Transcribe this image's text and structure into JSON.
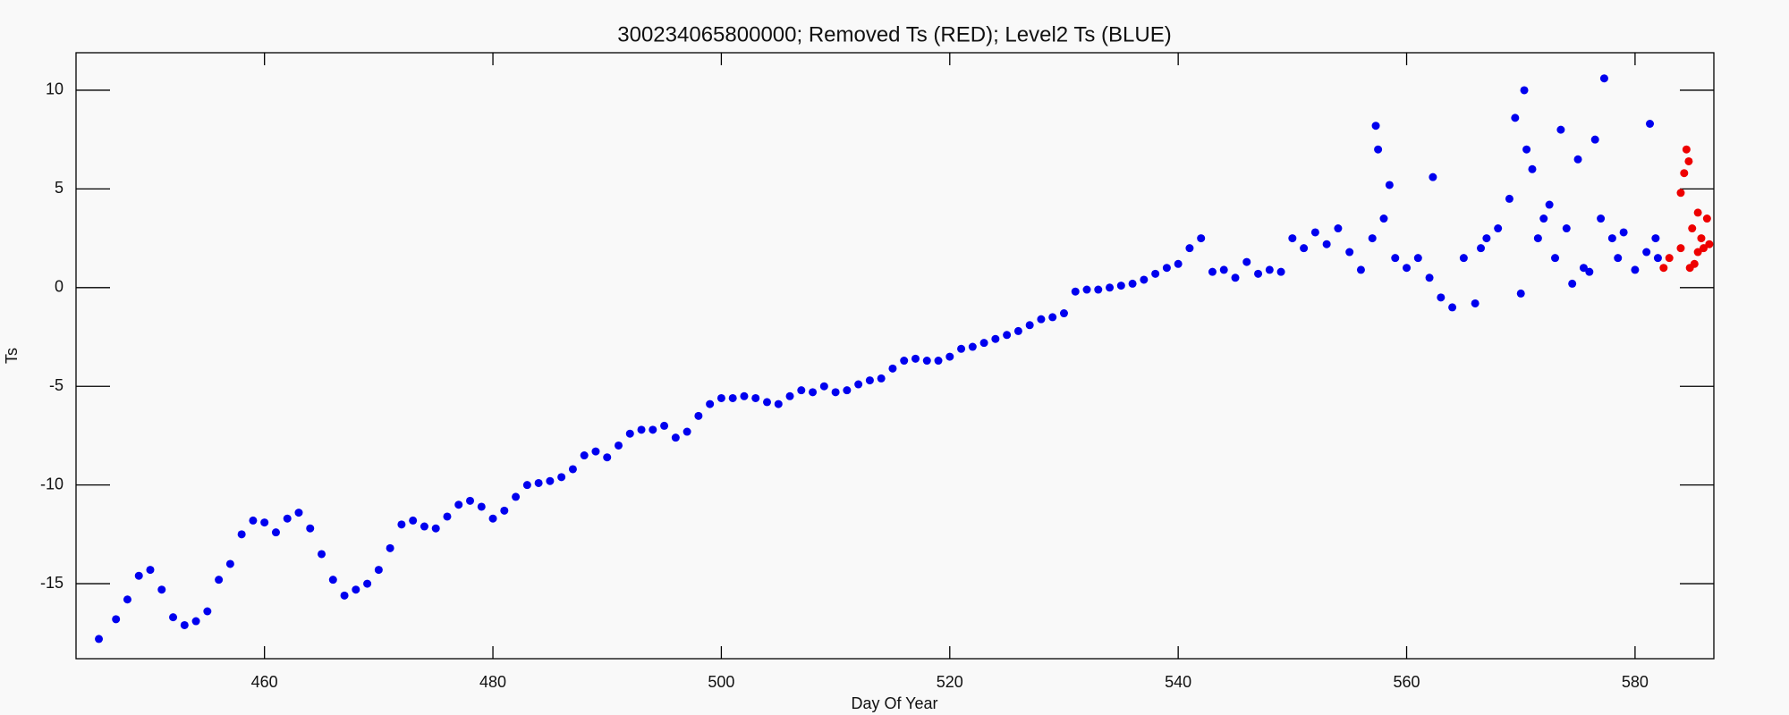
{
  "chart_data": {
    "type": "scatter",
    "title": "300234065800000; Removed Ts (RED); Level2 Ts (BLUE)",
    "xlabel": "Day Of Year",
    "ylabel": "Ts",
    "xlim": [
      443.5,
      586.9
    ],
    "ylim": [
      -18.8,
      11.9
    ],
    "xticks": [
      460,
      480,
      500,
      520,
      540,
      560,
      580
    ],
    "yticks": [
      -15,
      -10,
      -5,
      0,
      5,
      10
    ],
    "series": [
      {
        "color": "#0000ee",
        "x": [
          445.5,
          447,
          448,
          449,
          450,
          451,
          452,
          453,
          454,
          455,
          456,
          457,
          458,
          459,
          460,
          461,
          462,
          463,
          464,
          465,
          466,
          467,
          468,
          469,
          470,
          471,
          472,
          473,
          474,
          475,
          476,
          477,
          478,
          479,
          480,
          481,
          482,
          483,
          484,
          485,
          486,
          487,
          488,
          489,
          490,
          491,
          492,
          493,
          494,
          495,
          496,
          497,
          498,
          499,
          500,
          501,
          502,
          503,
          504,
          505,
          506,
          507,
          508,
          509,
          510,
          511,
          512,
          513,
          514,
          515,
          516,
          517,
          518,
          519,
          520,
          521,
          522,
          523,
          524,
          525,
          526,
          527,
          528,
          529,
          530,
          531,
          532,
          533,
          534,
          535,
          536,
          537,
          538,
          539,
          540,
          541,
          542,
          543,
          544,
          545,
          546,
          547,
          548,
          549,
          550,
          551,
          552,
          553,
          554,
          555,
          556,
          557,
          557.3,
          557.5,
          558,
          558.5,
          559,
          560,
          561,
          562,
          562.3,
          563,
          564,
          565,
          566,
          566.5,
          567,
          568,
          569,
          569.5,
          570,
          570.3,
          570.5,
          571,
          571.5,
          572,
          572.5,
          573,
          573.5,
          574,
          574.5,
          575,
          575.5,
          576,
          576.5,
          577,
          577.3,
          578,
          578.5,
          579,
          580,
          581,
          581.3,
          581.8,
          582
        ],
        "values": [
          -17.8,
          -16.8,
          -15.8,
          -14.6,
          -14.3,
          -15.3,
          -16.7,
          -17.1,
          -16.9,
          -16.4,
          -14.8,
          -14.0,
          -12.5,
          -11.8,
          -11.9,
          -12.4,
          -11.7,
          -11.4,
          -12.2,
          -13.5,
          -14.8,
          -15.6,
          -15.3,
          -15.0,
          -14.3,
          -13.2,
          -12.0,
          -11.8,
          -12.1,
          -12.2,
          -11.6,
          -11.0,
          -10.8,
          -11.1,
          -11.7,
          -11.3,
          -10.6,
          -10.0,
          -9.9,
          -9.8,
          -9.6,
          -9.2,
          -8.5,
          -8.3,
          -8.6,
          -8.0,
          -7.4,
          -7.2,
          -7.2,
          -7.0,
          -7.6,
          -7.3,
          -6.5,
          -5.9,
          -5.6,
          -5.6,
          -5.5,
          -5.6,
          -5.8,
          -5.9,
          -5.5,
          -5.2,
          -5.3,
          -5.0,
          -5.3,
          -5.2,
          -4.9,
          -4.7,
          -4.6,
          -4.1,
          -3.7,
          -3.6,
          -3.7,
          -3.7,
          -3.5,
          -3.1,
          -3.0,
          -2.8,
          -2.6,
          -2.4,
          -2.2,
          -1.9,
          -1.6,
          -1.5,
          -1.3,
          -0.2,
          -0.1,
          -0.1,
          0.0,
          0.1,
          0.2,
          0.4,
          0.7,
          1.0,
          1.2,
          2.0,
          2.5,
          0.8,
          0.9,
          0.5,
          1.3,
          0.7,
          0.9,
          0.8,
          2.5,
          2.0,
          2.8,
          2.2,
          3.0,
          1.8,
          0.9,
          2.5,
          8.2,
          7.0,
          3.5,
          5.2,
          1.5,
          1.0,
          1.5,
          0.5,
          5.6,
          -0.5,
          -1.0,
          1.5,
          -0.8,
          2.0,
          2.5,
          3.0,
          4.5,
          8.6,
          -0.3,
          10.0,
          7.0,
          6.0,
          2.5,
          3.5,
          4.2,
          1.5,
          8.0,
          3.0,
          0.2,
          6.5,
          1.0,
          0.8,
          7.5,
          3.5,
          10.6,
          2.5,
          1.5,
          2.8,
          0.9,
          1.8,
          8.3,
          2.5,
          1.5
        ]
      },
      {
        "color": "#ee0000",
        "x": [
          582.5,
          583,
          584,
          584,
          584.3,
          584.5,
          584.7,
          584.8,
          585,
          585.2,
          585.5,
          585.5,
          585.8,
          586,
          586.3,
          586.5
        ],
        "values": [
          1.0,
          1.5,
          2.0,
          4.8,
          5.8,
          7.0,
          6.4,
          1.0,
          3.0,
          1.2,
          3.8,
          1.8,
          2.5,
          2.0,
          3.5,
          2.2
        ]
      }
    ]
  }
}
